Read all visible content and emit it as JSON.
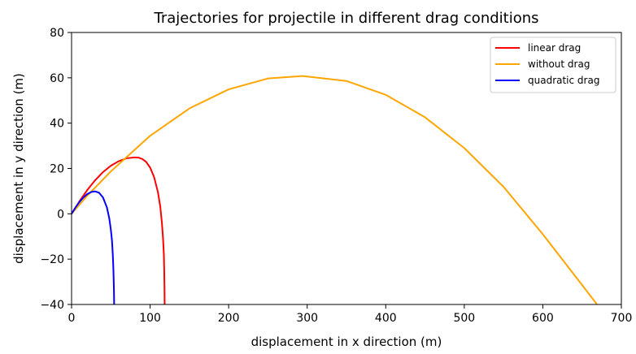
{
  "chart_data": {
    "type": "line",
    "title": "Trajectories for projectile in different drag conditions",
    "xlabel": "displacement in x direction (m)",
    "ylabel": "displacement in y direction (m)",
    "xlim": [
      0,
      700
    ],
    "ylim": [
      -40,
      80
    ],
    "xticks": [
      0,
      100,
      200,
      300,
      400,
      500,
      600,
      700
    ],
    "yticks": [
      -40,
      -20,
      0,
      20,
      40,
      60,
      80
    ],
    "xtick_labels": [
      "0",
      "100",
      "200",
      "300",
      "400",
      "500",
      "600",
      "700"
    ],
    "ytick_labels": [
      "−40",
      "−20",
      "0",
      "20",
      "40",
      "60",
      "80"
    ],
    "grid": false,
    "legend_position": "top-right",
    "series": [
      {
        "name": "linear drag",
        "color": "#ff0000",
        "x": [
          0,
          10,
          20,
          30,
          40,
          50,
          60,
          70,
          80,
          85,
          90,
          95,
          100,
          105,
          110,
          113,
          115,
          116.5,
          117.5,
          118,
          118.3,
          118.5
        ],
        "y": [
          0,
          5.5,
          10.5,
          14.8,
          18.4,
          21.2,
          23.2,
          24.5,
          24.9,
          24.8,
          24.2,
          22.9,
          20.4,
          16.3,
          9.5,
          3.0,
          -4.0,
          -11.0,
          -18.0,
          -25.0,
          -32.0,
          -40.0
        ]
      },
      {
        "name": "without drag",
        "color": "#ffa500",
        "x": [
          0,
          20,
          50,
          100,
          150,
          200,
          250,
          294,
          350,
          400,
          450,
          500,
          550,
          600,
          650,
          669
        ],
        "y": [
          0,
          8.0,
          18.7,
          34.4,
          46.5,
          54.9,
          59.7,
          60.8,
          58.6,
          52.5,
          42.6,
          29.0,
          11.9,
          -9.0,
          -31.4,
          -40.0
        ]
      },
      {
        "name": "quadratic drag",
        "color": "#0000ff",
        "x": [
          0,
          5,
          10,
          15,
          20,
          25,
          30,
          35,
          40,
          45,
          48,
          50,
          51.5,
          52.5,
          53.2,
          53.7,
          54,
          54.2
        ],
        "y": [
          0,
          2.8,
          5.2,
          7.2,
          8.7,
          9.6,
          9.9,
          9.3,
          7.2,
          2.8,
          -2.0,
          -7.0,
          -12.0,
          -18.0,
          -24.0,
          -30.0,
          -35.0,
          -40.0
        ]
      }
    ]
  }
}
